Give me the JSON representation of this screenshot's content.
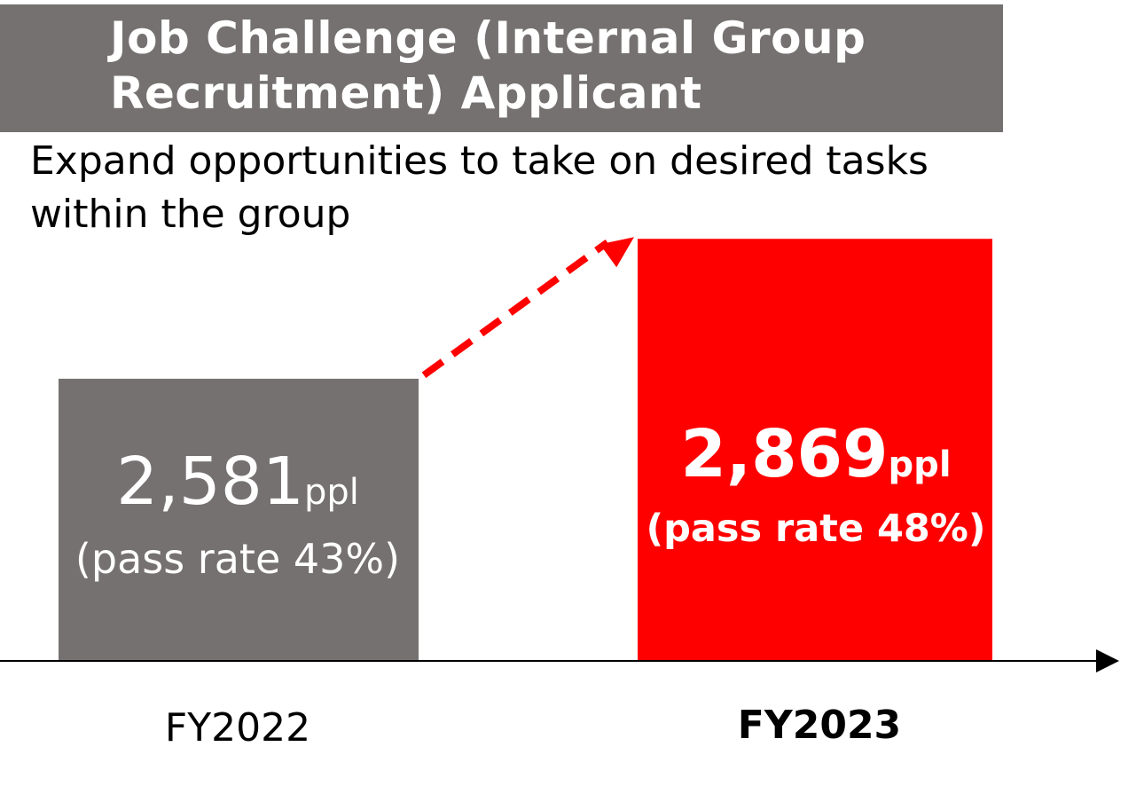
{
  "title": "Job Challenge (Internal Group Recruitment) Applicant",
  "subtitle": "Expand opportunities to take on desired tasks within the group",
  "colors": {
    "banner": "#767171",
    "fy2022_bar": "#767171",
    "fy2023_bar": "#ff0000",
    "arrow": "#ff0000",
    "axis": "#000000"
  },
  "chart_data": {
    "type": "bar",
    "categories": [
      "FY2022",
      "FY2023"
    ],
    "values": [
      2581,
      2869
    ],
    "unit": "ppl",
    "value_labels": [
      "2,581",
      "2,869"
    ],
    "pass_rate_labels": [
      "(pass rate 43%)",
      "(pass rate 48%)"
    ],
    "pass_rates": [
      43,
      48
    ],
    "highlight": "FY2023",
    "trend_arrow": true,
    "grid": false
  }
}
